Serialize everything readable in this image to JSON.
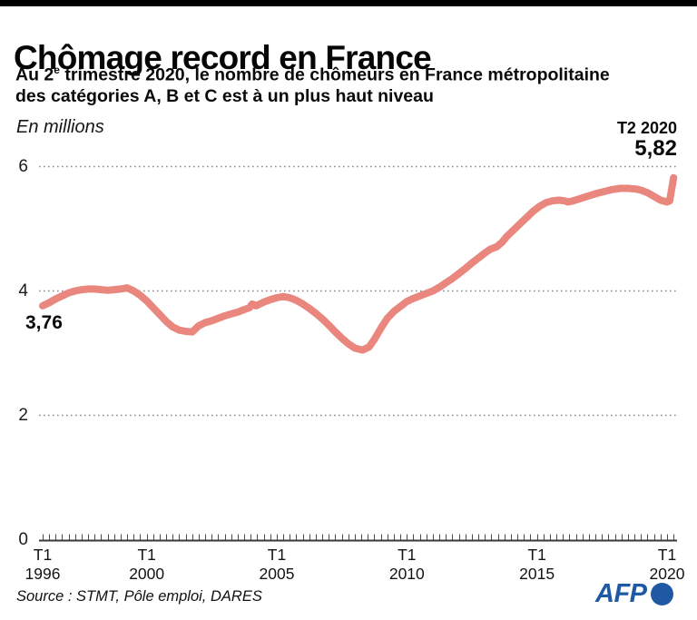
{
  "header": {
    "title": "Chômage record en France",
    "subtitle_line1_pre": "Au 2",
    "subtitle_sup": "e",
    "subtitle_line1_post": " trimestre 2020, le nombre de chômeurs en France métropolitaine",
    "subtitle_line2": "des catégories A, B et C est à un plus haut niveau"
  },
  "footer": {
    "source": "Source : STMT, Pôle emploi, DARES",
    "logo_text": "AFP",
    "logo_color": "#1f59a4"
  },
  "chart_data": {
    "type": "line",
    "title": "Chômage record en France",
    "unit_label": "En millions",
    "line_color": "#e9877f",
    "grid": "dotted horizontal at 2, 4, 6",
    "legend": "none",
    "ylim": [
      0,
      6.4
    ],
    "yticks": [
      0,
      2,
      4,
      6
    ],
    "x_range_years": [
      1996,
      2020.25
    ],
    "x_tick_step_years": 0.25,
    "xticks": [
      {
        "quarter": "T1",
        "year": "1996",
        "t": 1996
      },
      {
        "quarter": "T1",
        "year": "2000",
        "t": 2000
      },
      {
        "quarter": "T1",
        "year": "2005",
        "t": 2005
      },
      {
        "quarter": "T1",
        "year": "2010",
        "t": 2010
      },
      {
        "quarter": "T1",
        "year": "2015",
        "t": 2015
      },
      {
        "quarter": "T1",
        "year": "2020",
        "t": 2020
      }
    ],
    "annotations": {
      "start_value": "3,76",
      "end_period": "T2 2020",
      "end_value": "5,82"
    },
    "series": [
      {
        "name": "chomeurs_categories_ABC_millions",
        "points": [
          [
            1996.0,
            3.76
          ],
          [
            1996.25,
            3.81
          ],
          [
            1996.5,
            3.87
          ],
          [
            1996.75,
            3.92
          ],
          [
            1997.0,
            3.97
          ],
          [
            1997.25,
            4.0
          ],
          [
            1997.5,
            4.02
          ],
          [
            1997.75,
            4.03
          ],
          [
            1998.0,
            4.03
          ],
          [
            1998.25,
            4.02
          ],
          [
            1998.5,
            4.01
          ],
          [
            1998.75,
            4.02
          ],
          [
            1999.0,
            4.03
          ],
          [
            1999.25,
            4.05
          ],
          [
            1999.5,
            4.0
          ],
          [
            1999.75,
            3.93
          ],
          [
            2000.0,
            3.84
          ],
          [
            2000.25,
            3.73
          ],
          [
            2000.5,
            3.62
          ],
          [
            2000.75,
            3.51
          ],
          [
            2001.0,
            3.42
          ],
          [
            2001.25,
            3.37
          ],
          [
            2001.5,
            3.35
          ],
          [
            2001.75,
            3.34
          ],
          [
            2002.0,
            3.44
          ],
          [
            2002.25,
            3.49
          ],
          [
            2002.5,
            3.52
          ],
          [
            2002.75,
            3.56
          ],
          [
            2003.0,
            3.6
          ],
          [
            2003.25,
            3.63
          ],
          [
            2003.5,
            3.66
          ],
          [
            2003.75,
            3.7
          ],
          [
            2003.95,
            3.73
          ],
          [
            2004.05,
            3.79
          ],
          [
            2004.2,
            3.76
          ],
          [
            2004.5,
            3.82
          ],
          [
            2004.75,
            3.86
          ],
          [
            2005.0,
            3.89
          ],
          [
            2005.25,
            3.91
          ],
          [
            2005.5,
            3.89
          ],
          [
            2005.75,
            3.85
          ],
          [
            2006.0,
            3.79
          ],
          [
            2006.25,
            3.72
          ],
          [
            2006.5,
            3.64
          ],
          [
            2006.75,
            3.55
          ],
          [
            2007.0,
            3.45
          ],
          [
            2007.25,
            3.34
          ],
          [
            2007.5,
            3.24
          ],
          [
            2007.75,
            3.15
          ],
          [
            2008.0,
            3.08
          ],
          [
            2008.3,
            3.05
          ],
          [
            2008.55,
            3.1
          ],
          [
            2008.75,
            3.22
          ],
          [
            2009.0,
            3.4
          ],
          [
            2009.25,
            3.56
          ],
          [
            2009.5,
            3.67
          ],
          [
            2009.75,
            3.75
          ],
          [
            2010.0,
            3.83
          ],
          [
            2010.25,
            3.88
          ],
          [
            2010.5,
            3.92
          ],
          [
            2010.75,
            3.96
          ],
          [
            2011.0,
            4.0
          ],
          [
            2011.25,
            4.06
          ],
          [
            2011.5,
            4.13
          ],
          [
            2011.75,
            4.2
          ],
          [
            2012.0,
            4.28
          ],
          [
            2012.25,
            4.36
          ],
          [
            2012.5,
            4.45
          ],
          [
            2012.75,
            4.53
          ],
          [
            2013.0,
            4.61
          ],
          [
            2013.2,
            4.67
          ],
          [
            2013.45,
            4.71
          ],
          [
            2013.65,
            4.78
          ],
          [
            2013.85,
            4.88
          ],
          [
            2014.1,
            4.98
          ],
          [
            2014.35,
            5.08
          ],
          [
            2014.6,
            5.18
          ],
          [
            2014.85,
            5.28
          ],
          [
            2015.1,
            5.36
          ],
          [
            2015.35,
            5.42
          ],
          [
            2015.6,
            5.45
          ],
          [
            2015.85,
            5.46
          ],
          [
            2016.05,
            5.45
          ],
          [
            2016.2,
            5.43
          ],
          [
            2016.4,
            5.45
          ],
          [
            2016.7,
            5.49
          ],
          [
            2017.0,
            5.53
          ],
          [
            2017.3,
            5.57
          ],
          [
            2017.6,
            5.6
          ],
          [
            2017.9,
            5.63
          ],
          [
            2018.2,
            5.65
          ],
          [
            2018.5,
            5.65
          ],
          [
            2018.8,
            5.64
          ],
          [
            2019.0,
            5.62
          ],
          [
            2019.25,
            5.58
          ],
          [
            2019.5,
            5.52
          ],
          [
            2019.75,
            5.46
          ],
          [
            2020.0,
            5.43
          ],
          [
            2020.1,
            5.45
          ],
          [
            2020.25,
            5.82
          ]
        ]
      }
    ]
  }
}
